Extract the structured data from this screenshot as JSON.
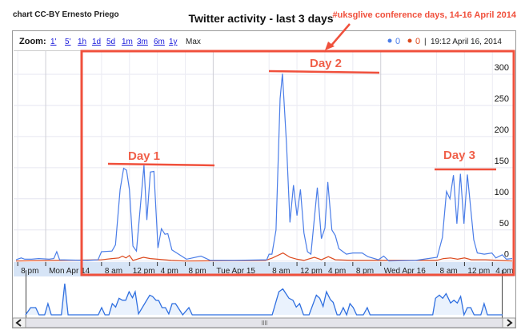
{
  "header": {
    "credit": "chart CC-BY Ernesto Priego",
    "annotation": "#uksglive conference days, 14-16 April 2014"
  },
  "toolbar": {
    "zoom_label": "Zoom:",
    "zoom_options": [
      "1'",
      "5'",
      "1h",
      "1d",
      "5d",
      "1m",
      "3m",
      "6m",
      "1y",
      "Max"
    ],
    "selected_zoom": "Max",
    "legend": [
      {
        "value": "0",
        "color": "#4a7de8"
      },
      {
        "value": "0",
        "color": "#dc4a1e"
      }
    ],
    "separator": "|",
    "timestamp": "19:12 April 16, 2014"
  },
  "day_annotations": [
    "Day 1",
    "Day 2",
    "Day 3"
  ],
  "colors": {
    "series_blue": "#4a7de8",
    "series_red": "#dc4a1e",
    "annotation": "#f0503c",
    "axis_band": "#d6e4f6",
    "overview_fill": "#eaf2fd"
  },
  "chart_data": {
    "type": "line",
    "title": "Twitter activity - last 3 days",
    "xlim": [
      "2014-04-13T19:45",
      "2014-04-16T18:50"
    ],
    "ylim": [
      0,
      300
    ],
    "y_axis_position": "right",
    "y_ticks": [
      0,
      50,
      100,
      150,
      200,
      250,
      300
    ],
    "grid": true,
    "x_ticks": [
      {
        "t": "2014-04-13T20:00",
        "label": "8 pm"
      },
      {
        "t": "2014-04-14T00:00",
        "label": "Mon Apr 14"
      },
      {
        "t": "2014-04-14T08:00",
        "label": "8 am"
      },
      {
        "t": "2014-04-14T12:00",
        "label": "12 pm"
      },
      {
        "t": "2014-04-14T16:00",
        "label": "4 pm"
      },
      {
        "t": "2014-04-14T20:00",
        "label": "8 pm"
      },
      {
        "t": "2014-04-15T00:00",
        "label": "Tue Apr 15"
      },
      {
        "t": "2014-04-15T08:00",
        "label": "8 am"
      },
      {
        "t": "2014-04-15T12:00",
        "label": "12 pm"
      },
      {
        "t": "2014-04-15T16:00",
        "label": "4 pm"
      },
      {
        "t": "2014-04-15T20:00",
        "label": "8 pm"
      },
      {
        "t": "2014-04-16T00:00",
        "label": "Wed Apr 16"
      },
      {
        "t": "2014-04-16T08:00",
        "label": "8 am"
      },
      {
        "t": "2014-04-16T12:00",
        "label": "12 pm"
      },
      {
        "t": "2014-04-16T16:00",
        "label": "4 pm"
      }
    ],
    "series": [
      {
        "color": "#4a7de8",
        "points": [
          [
            "2014-04-13T19:45",
            2
          ],
          [
            "2014-04-13T20:30",
            5
          ],
          [
            "2014-04-13T21:00",
            3
          ],
          [
            "2014-04-13T22:00",
            3
          ],
          [
            "2014-04-13T23:00",
            4
          ],
          [
            "2014-04-14T00:30",
            3
          ],
          [
            "2014-04-14T01:10",
            4
          ],
          [
            "2014-04-14T01:35",
            15
          ],
          [
            "2014-04-14T02:00",
            2
          ],
          [
            "2014-04-14T06:00",
            1
          ],
          [
            "2014-04-14T07:30",
            2
          ],
          [
            "2014-04-14T08:00",
            15
          ],
          [
            "2014-04-14T09:30",
            16
          ],
          [
            "2014-04-14T10:00",
            26
          ],
          [
            "2014-04-14T10:40",
            115
          ],
          [
            "2014-04-14T11:10",
            149
          ],
          [
            "2014-04-14T11:35",
            146
          ],
          [
            "2014-04-14T12:00",
            115
          ],
          [
            "2014-04-14T12:30",
            24
          ],
          [
            "2014-04-14T13:00",
            16
          ],
          [
            "2014-04-14T14:05",
            154
          ],
          [
            "2014-04-14T14:30",
            66
          ],
          [
            "2014-04-14T15:00",
            143
          ],
          [
            "2014-04-14T15:30",
            144
          ],
          [
            "2014-04-14T16:05",
            21
          ],
          [
            "2014-04-14T16:35",
            52
          ],
          [
            "2014-04-14T17:05",
            43
          ],
          [
            "2014-04-14T17:30",
            44
          ],
          [
            "2014-04-14T18:05",
            18
          ],
          [
            "2014-04-14T20:10",
            3
          ],
          [
            "2014-04-14T22:15",
            8
          ],
          [
            "2014-04-14T23:35",
            1
          ],
          [
            "2014-04-15T03:00",
            1
          ],
          [
            "2014-04-15T07:40",
            2
          ],
          [
            "2014-04-15T08:00",
            11
          ],
          [
            "2014-04-15T08:25",
            11
          ],
          [
            "2014-04-15T09:00",
            50
          ],
          [
            "2014-04-15T09:35",
            261
          ],
          [
            "2014-04-15T09:55",
            301
          ],
          [
            "2014-04-15T10:30",
            188
          ],
          [
            "2014-04-15T11:00",
            62
          ],
          [
            "2014-04-15T11:30",
            122
          ],
          [
            "2014-04-15T12:00",
            73
          ],
          [
            "2014-04-15T12:30",
            115
          ],
          [
            "2014-04-15T13:00",
            45
          ],
          [
            "2014-04-15T13:30",
            15
          ],
          [
            "2014-04-15T14:00",
            11
          ],
          [
            "2014-04-15T14:55",
            118
          ],
          [
            "2014-04-15T15:30",
            36
          ],
          [
            "2014-04-15T16:00",
            53
          ],
          [
            "2014-04-15T16:25",
            127
          ],
          [
            "2014-04-15T17:00",
            50
          ],
          [
            "2014-04-15T17:30",
            41
          ],
          [
            "2014-04-15T18:00",
            20
          ],
          [
            "2014-04-15T19:05",
            11
          ],
          [
            "2014-04-15T20:00",
            13
          ],
          [
            "2014-04-15T21:20",
            13
          ],
          [
            "2014-04-15T22:10",
            7
          ],
          [
            "2014-04-15T23:40",
            2
          ],
          [
            "2014-04-16T00:25",
            8
          ],
          [
            "2014-04-16T01:10",
            0
          ],
          [
            "2014-04-16T05:00",
            1
          ],
          [
            "2014-04-16T08:05",
            6
          ],
          [
            "2014-04-16T08:50",
            38
          ],
          [
            "2014-04-16T09:25",
            112
          ],
          [
            "2014-04-16T09:55",
            100
          ],
          [
            "2014-04-16T10:25",
            138
          ],
          [
            "2014-04-16T10:55",
            60
          ],
          [
            "2014-04-16T11:25",
            140
          ],
          [
            "2014-04-16T11:55",
            60
          ],
          [
            "2014-04-16T12:25",
            139
          ],
          [
            "2014-04-16T13:20",
            34
          ],
          [
            "2014-04-16T13:50",
            13
          ],
          [
            "2014-04-16T14:50",
            11
          ],
          [
            "2014-04-16T15:55",
            13
          ],
          [
            "2014-04-16T16:30",
            5
          ],
          [
            "2014-04-16T17:25",
            10
          ],
          [
            "2014-04-16T18:00",
            3
          ],
          [
            "2014-04-16T18:50",
            4
          ]
        ]
      },
      {
        "color": "#dc4a1e",
        "points": [
          [
            "2014-04-13T19:45",
            0
          ],
          [
            "2014-04-14T08:00",
            2
          ],
          [
            "2014-04-14T09:30",
            4
          ],
          [
            "2014-04-14T10:30",
            5
          ],
          [
            "2014-04-14T11:00",
            8
          ],
          [
            "2014-04-14T11:30",
            5
          ],
          [
            "2014-04-14T12:00",
            9
          ],
          [
            "2014-04-14T12:30",
            1
          ],
          [
            "2014-04-14T14:00",
            6
          ],
          [
            "2014-04-14T15:00",
            4
          ],
          [
            "2014-04-14T16:00",
            3
          ],
          [
            "2014-04-14T18:00",
            1
          ],
          [
            "2014-04-14T20:00",
            0
          ],
          [
            "2014-04-15T07:30",
            1
          ],
          [
            "2014-04-15T08:30",
            5
          ],
          [
            "2014-04-15T10:00",
            13
          ],
          [
            "2014-04-15T11:00",
            6
          ],
          [
            "2014-04-15T12:00",
            3
          ],
          [
            "2014-04-15T13:00",
            1
          ],
          [
            "2014-04-15T14:30",
            6
          ],
          [
            "2014-04-15T15:30",
            2
          ],
          [
            "2014-04-15T16:30",
            7
          ],
          [
            "2014-04-15T17:30",
            2
          ],
          [
            "2014-04-15T20:00",
            1
          ],
          [
            "2014-04-16T08:00",
            1
          ],
          [
            "2014-04-16T09:00",
            4
          ],
          [
            "2014-04-16T10:00",
            5
          ],
          [
            "2014-04-16T11:00",
            3
          ],
          [
            "2014-04-16T12:00",
            5
          ],
          [
            "2014-04-16T13:00",
            2
          ],
          [
            "2014-04-16T15:00",
            2
          ],
          [
            "2014-04-16T18:50",
            0
          ]
        ]
      }
    ],
    "overview": {
      "level_range": [
        0,
        1
      ],
      "points": [
        [
          "2014-04-13T19:45",
          0
        ],
        [
          "2014-04-13T20:30",
          0.23
        ],
        [
          "2014-04-13T21:15",
          0.23
        ],
        [
          "2014-04-13T21:45",
          0
        ],
        [
          "2014-04-13T22:35",
          0
        ],
        [
          "2014-04-13T23:05",
          0.36
        ],
        [
          "2014-04-13T23:35",
          0
        ],
        [
          "2014-04-14T01:05",
          0
        ],
        [
          "2014-04-14T01:35",
          1.0
        ],
        [
          "2014-04-14T02:05",
          0
        ],
        [
          "2014-04-14T06:35",
          0
        ],
        [
          "2014-04-14T07:05",
          0.23
        ],
        [
          "2014-04-14T07:35",
          0
        ],
        [
          "2014-04-14T08:10",
          0
        ],
        [
          "2014-04-14T08:40",
          0.36
        ],
        [
          "2014-04-14T09:10",
          0.25
        ],
        [
          "2014-04-14T09:40",
          0.53
        ],
        [
          "2014-04-14T10:10",
          0.47
        ],
        [
          "2014-04-14T10:40",
          0.47
        ],
        [
          "2014-04-14T11:10",
          0.74
        ],
        [
          "2014-04-14T11:40",
          0.55
        ],
        [
          "2014-04-14T12:05",
          0.74
        ],
        [
          "2014-04-14T12:35",
          0.03
        ],
        [
          "2014-04-14T14:15",
          0.63
        ],
        [
          "2014-04-14T14:40",
          0.59
        ],
        [
          "2014-04-14T15:10",
          0.47
        ],
        [
          "2014-04-14T15:35",
          0.46
        ],
        [
          "2014-04-14T16:05",
          0.23
        ],
        [
          "2014-04-14T16:35",
          0.23
        ],
        [
          "2014-04-14T17:05",
          0.03
        ],
        [
          "2014-04-14T17:35",
          0.36
        ],
        [
          "2014-04-14T18:05",
          0.36
        ],
        [
          "2014-04-14T19:10",
          0
        ],
        [
          "2014-04-14T20:05",
          0.23
        ],
        [
          "2014-04-14T20:35",
          0
        ],
        [
          "2014-04-15T08:30",
          0
        ],
        [
          "2014-04-15T09:30",
          0.74
        ],
        [
          "2014-04-15T10:05",
          0.83
        ],
        [
          "2014-04-15T11:00",
          0.53
        ],
        [
          "2014-04-15T11:35",
          0.47
        ],
        [
          "2014-04-15T12:05",
          0.25
        ],
        [
          "2014-04-15T12:35",
          0.36
        ],
        [
          "2014-04-15T13:10",
          0
        ],
        [
          "2014-04-15T14:00",
          0
        ],
        [
          "2014-04-15T15:05",
          0.63
        ],
        [
          "2014-04-15T15:35",
          0.53
        ],
        [
          "2014-04-15T16:05",
          0.27
        ],
        [
          "2014-04-15T16:35",
          0.74
        ],
        [
          "2014-04-15T17:10",
          0.49
        ],
        [
          "2014-04-15T17:35",
          0.4
        ],
        [
          "2014-04-15T18:10",
          0
        ],
        [
          "2014-04-15T18:35",
          0
        ],
        [
          "2014-04-15T19:05",
          0.23
        ],
        [
          "2014-04-15T19:35",
          0
        ],
        [
          "2014-04-15T20:05",
          0.36
        ],
        [
          "2014-04-15T20:35",
          0.23
        ],
        [
          "2014-04-15T21:05",
          0
        ],
        [
          "2014-04-15T22:05",
          0
        ],
        [
          "2014-04-15T22:40",
          0.23
        ],
        [
          "2014-04-15T23:05",
          0
        ],
        [
          "2014-04-16T08:25",
          0
        ],
        [
          "2014-04-16T08:50",
          0.53
        ],
        [
          "2014-04-16T09:25",
          0.63
        ],
        [
          "2014-04-16T09:55",
          0.53
        ],
        [
          "2014-04-16T10:25",
          0.68
        ],
        [
          "2014-04-16T11:05",
          0.38
        ],
        [
          "2014-04-16T11:35",
          0.47
        ],
        [
          "2014-04-16T12:05",
          0.38
        ],
        [
          "2014-04-16T12:35",
          0.59
        ],
        [
          "2014-04-16T13:05",
          0
        ],
        [
          "2014-04-16T13:35",
          0.23
        ],
        [
          "2014-04-16T14:05",
          0.23
        ],
        [
          "2014-04-16T14:35",
          0
        ],
        [
          "2014-04-16T15:35",
          0
        ],
        [
          "2014-04-16T16:05",
          0.36
        ],
        [
          "2014-04-16T16:35",
          0
        ],
        [
          "2014-04-16T18:50",
          0
        ]
      ]
    }
  }
}
